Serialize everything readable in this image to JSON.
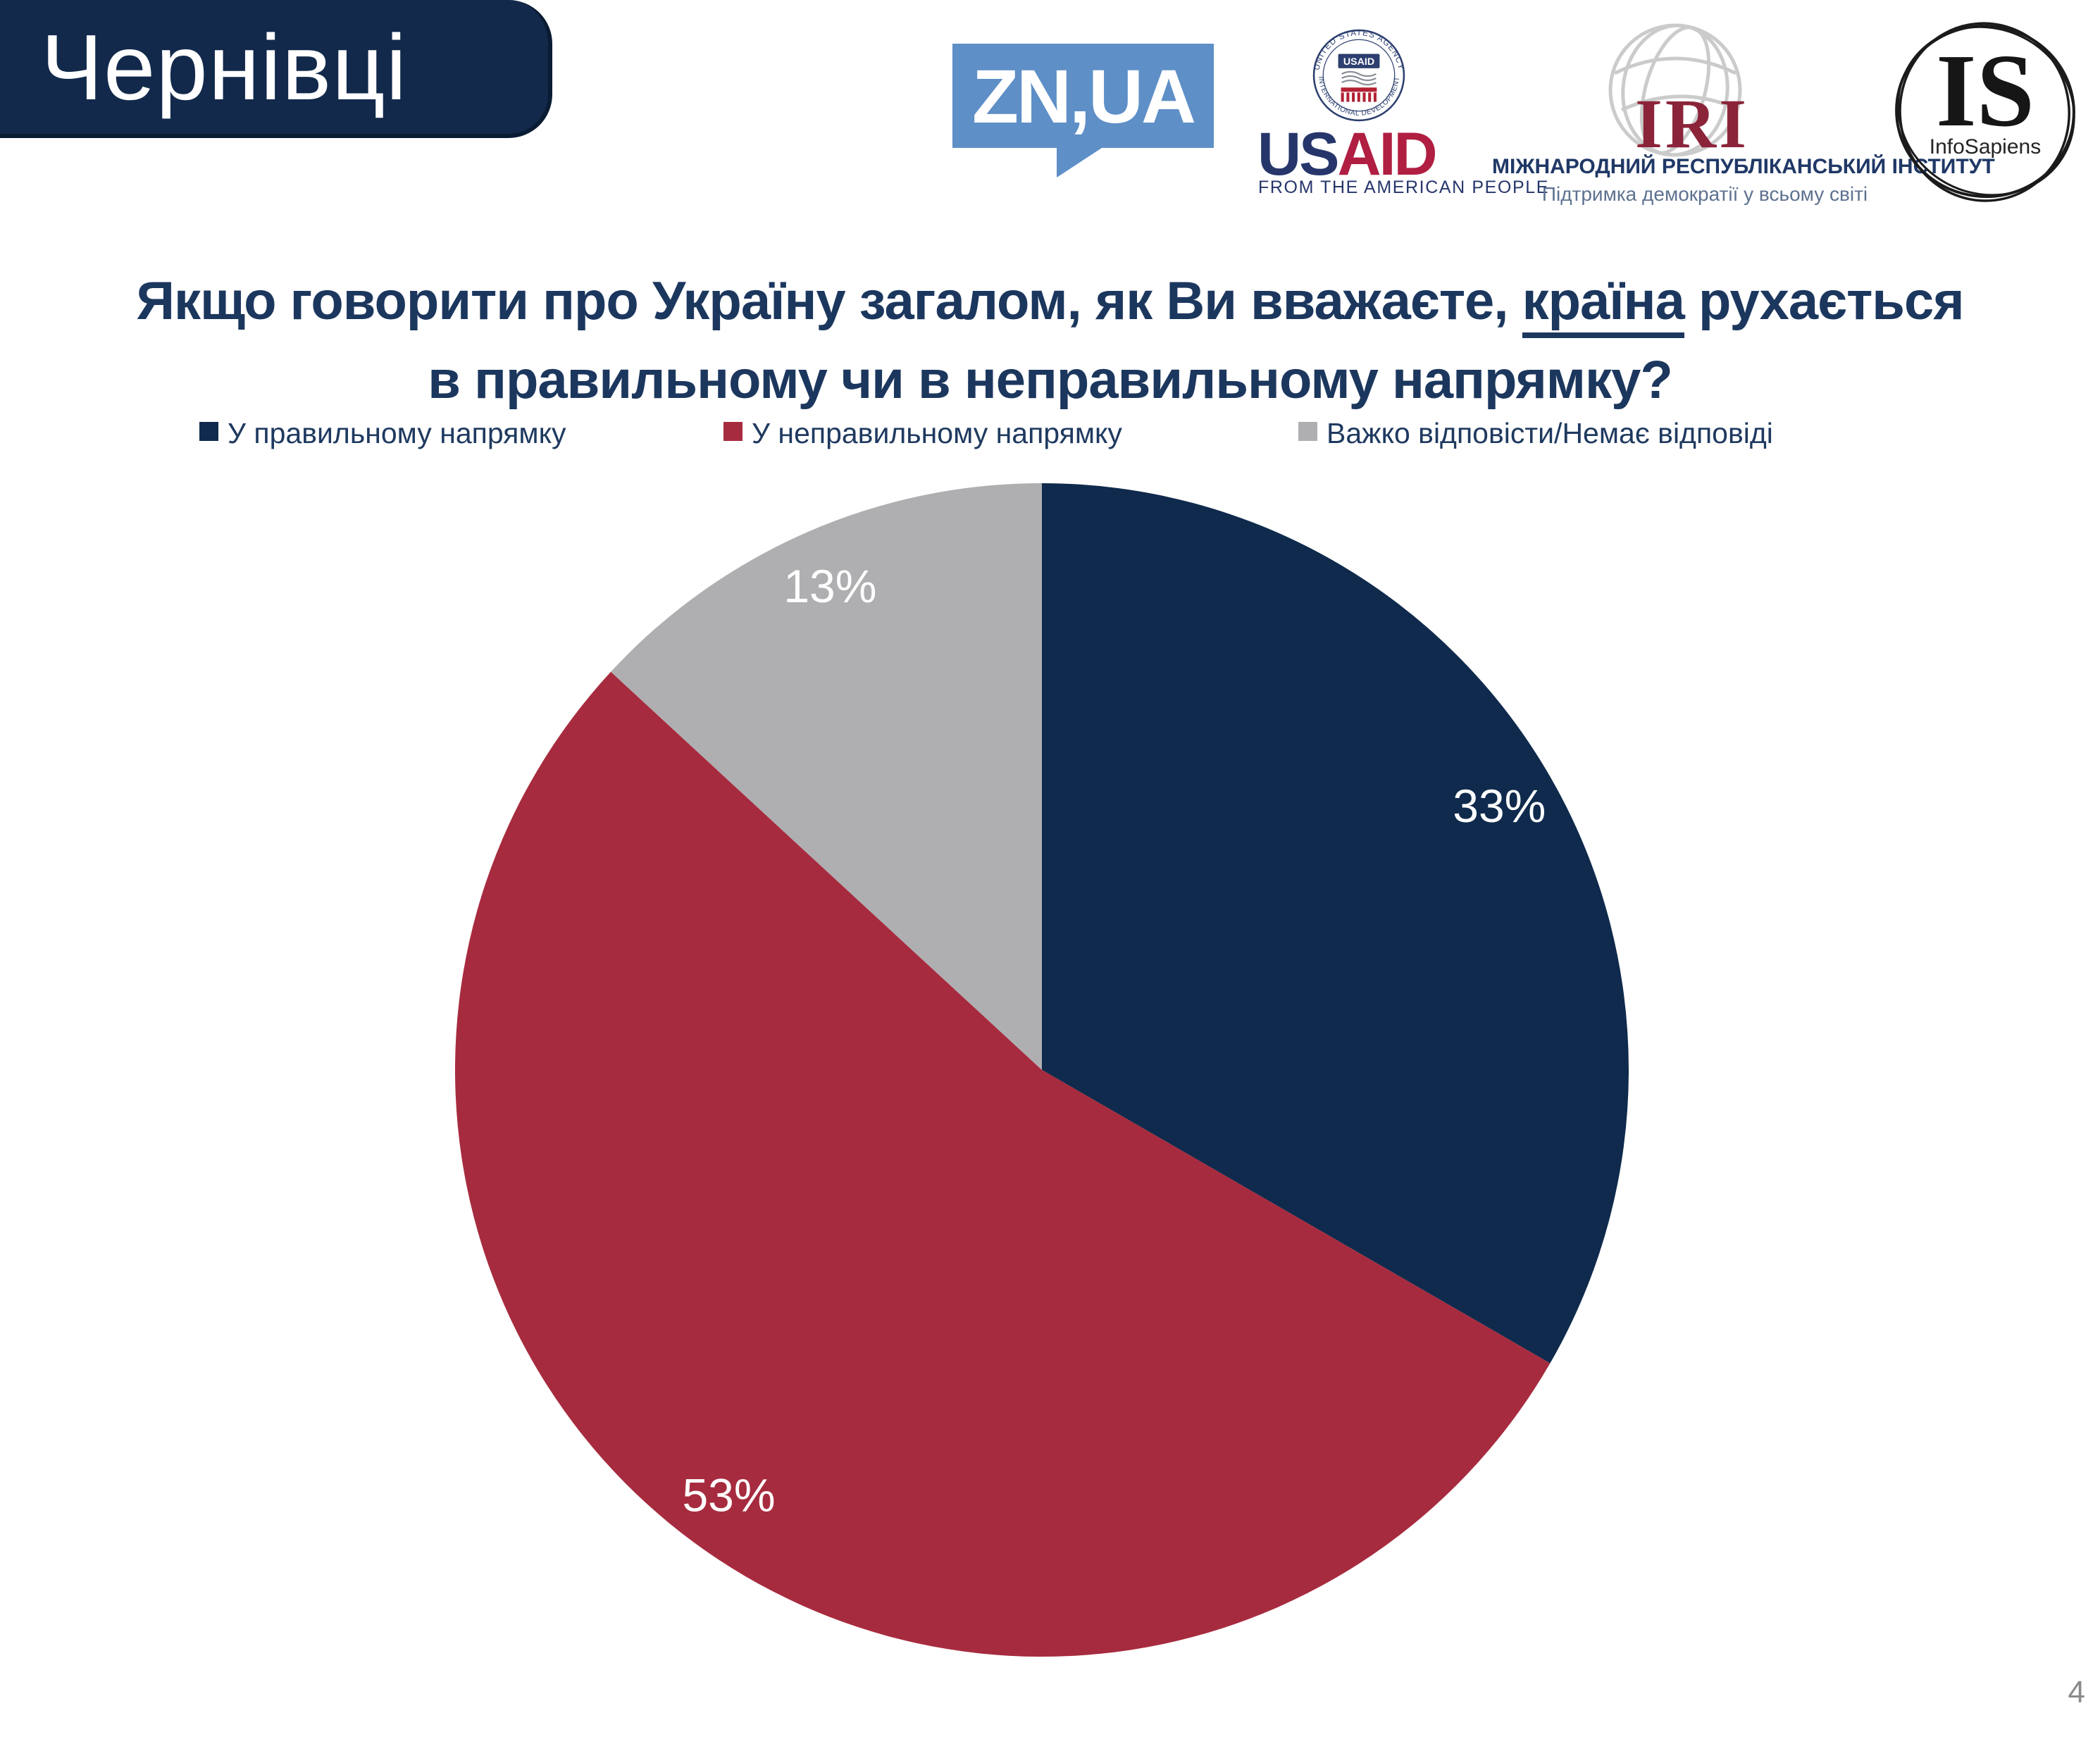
{
  "header": {
    "region": "Чернівці"
  },
  "logos": {
    "znua": {
      "label": "ZN,UA"
    },
    "usaid": {
      "seal_top_text": "UNITED STATES AGENCY",
      "seal_bottom_text": "INTERNATIONAL DEVELOPMENT",
      "seal_center_label": "USAID",
      "wordmark_us": "US",
      "wordmark_aid": "AID",
      "tagline": "FROM THE AMERICAN PEOPLE"
    },
    "iri": {
      "acronym": "IRI",
      "title": "МІЖНАРОДНИЙ РЕСПУБЛІКАНСЬКИЙ ІНСТИТУТ",
      "subtitle": "Підтримка демократії у всьому світі"
    },
    "infosapiens": {
      "acronym": "IS",
      "label": "InfoSapiens"
    }
  },
  "question": {
    "part1": "Якщо говорити про Україну загалом, як Ви вважаєте, ",
    "underlined": "країна",
    "part2": " рухається",
    "line2": "в правильному чи в неправильному напрямку?"
  },
  "chart_data": {
    "type": "pie",
    "title": "Якщо говорити про Україну загалом, як Ви вважаєте, країна рухається в правильному чи в неправильному напрямку?",
    "start_angle_deg": -90,
    "direction": "clockwise",
    "legend_position": "top",
    "label_radius_fraction": 0.9,
    "slices": [
      {
        "label": "У правильному напрямку",
        "value": 33,
        "display": "33%",
        "color": "#0F2A4C"
      },
      {
        "label": "У неправильному напрямку",
        "value": 53,
        "display": "53%",
        "color": "#A72B3E"
      },
      {
        "label": "Важко відповісти/Немає відповіді",
        "value": 13,
        "display": "13%",
        "color": "#AFAFB2"
      }
    ]
  },
  "footer": {
    "page_number": "4"
  }
}
